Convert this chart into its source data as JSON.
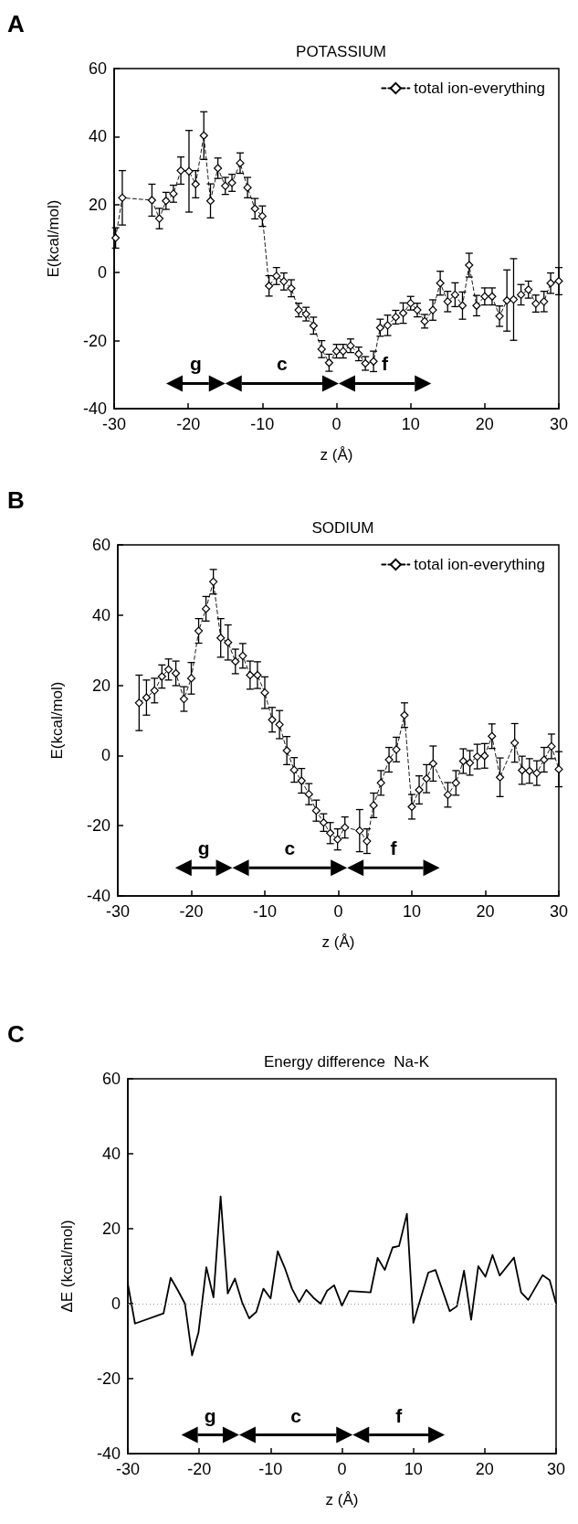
{
  "chart_data": [
    {
      "type": "line",
      "title": "POTASSIUM",
      "xlabel": "z (Å)",
      "ylabel": "E(kcal/mol)",
      "xlim": [
        -30,
        30
      ],
      "xticks": [
        -30,
        -20,
        -10,
        0,
        10,
        20,
        30
      ],
      "ylim": [
        -40,
        60
      ],
      "yticks": [
        -40,
        -20,
        0,
        20,
        40,
        60
      ],
      "grid": false,
      "legend": "top right",
      "marker": "diamond",
      "line_style": "dashed",
      "x": [
        -29.8,
        -28.9,
        -24.9,
        -23.9,
        -23,
        -22,
        -21,
        -19.9,
        -19,
        -17.9,
        -17,
        -16,
        -15,
        -14.1,
        -13,
        -12,
        -11,
        -10,
        -9.1,
        -8.1,
        -7.1,
        -6.1,
        -5.1,
        -4.1,
        -3.1,
        -2,
        -1,
        0,
        0.9,
        1.9,
        3,
        3.9,
        5,
        5.9,
        6.9,
        8,
        9,
        10,
        10.9,
        11.9,
        13,
        14,
        15,
        16,
        17,
        17.9,
        18.9,
        20,
        21,
        22,
        23,
        23.9,
        24.9,
        25.9,
        26.9,
        28,
        28.9,
        30
      ],
      "series": [
        {
          "name": "total ion-everything",
          "color": "#000000",
          "values": [
            10.2,
            22,
            21.3,
            15.9,
            21.1,
            23.2,
            30,
            29.8,
            26,
            40.3,
            21.1,
            30.7,
            25.5,
            26.4,
            32.2,
            25,
            18.8,
            16.6,
            -3.9,
            -1,
            -2.6,
            -4.6,
            -11,
            -12.2,
            -15.6,
            -22.5,
            -26.5,
            -23.1,
            -23.1,
            -21.5,
            -23.9,
            -26.7,
            -26.1,
            -16.2,
            -15.5,
            -13.1,
            -11.9,
            -9,
            -11,
            -14.3,
            -11,
            -3.1,
            -8.5,
            -6.5,
            -9.7,
            2.2,
            -9.7,
            -7,
            -7,
            -12.8,
            -8.2,
            -7.9,
            -6.5,
            -5,
            -9.1,
            -8.5,
            -3.1,
            -2.5
          ],
          "errors": [
            3,
            8,
            4.7,
            3,
            2.5,
            2.5,
            4,
            12,
            4,
            7,
            5,
            3,
            2.5,
            2.5,
            3,
            3,
            3,
            3,
            3,
            2.5,
            2.5,
            2.5,
            2,
            2,
            2.5,
            2.5,
            2.5,
            2,
            2,
            2,
            2,
            2,
            3,
            2.5,
            3,
            2,
            3,
            2,
            2,
            2,
            3,
            3.5,
            3,
            3.5,
            4,
            3.5,
            3,
            2.5,
            2.5,
            3,
            9,
            12,
            3,
            2.5,
            2.5,
            3,
            3,
            4
          ]
        }
      ],
      "annotations": [
        "A",
        "g",
        "c",
        "f"
      ]
    },
    {
      "type": "line",
      "title": "SODIUM",
      "xlabel": "z (Å)",
      "ylabel": "E(kcal/mol)",
      "xlim": [
        -30,
        30
      ],
      "xticks": [
        -30,
        -20,
        -10,
        0,
        10,
        20,
        30
      ],
      "ylim": [
        -40,
        60
      ],
      "yticks": [
        -40,
        -20,
        0,
        20,
        40,
        60
      ],
      "grid": false,
      "legend": "top right",
      "marker": "diamond",
      "line_style": "dashed",
      "x": [
        -27.1,
        -26.1,
        -25,
        -24,
        -23.1,
        -22.1,
        -21,
        -20,
        -19,
        -18,
        -17,
        -16,
        -15,
        -14,
        -13,
        -12,
        -11,
        -10,
        -9,
        -8,
        -7,
        -6,
        -5,
        -4,
        -3,
        -2,
        -1.1,
        -0.1,
        0.9,
        2.9,
        3.9,
        4.8,
        5.8,
        6.9,
        7.9,
        9,
        10,
        11,
        12,
        12.9,
        14.9,
        16,
        17,
        17.9,
        18.9,
        19.9,
        20.9,
        22,
        24,
        25,
        26,
        27,
        28,
        29,
        30
      ],
      "series": [
        {
          "name": "total ion-everything",
          "color": "#000000",
          "values": [
            15,
            16.5,
            18.5,
            22.5,
            24.5,
            23.4,
            16.1,
            22,
            35.5,
            41.8,
            49.5,
            33.5,
            32.2,
            26.8,
            28.4,
            22.9,
            22.9,
            17.9,
            10.2,
            8.8,
            1.4,
            -4.1,
            -7.2,
            -11,
            -15.7,
            -19.1,
            -22.1,
            -23.9,
            -20.5,
            -21.4,
            -24.4,
            -14.2,
            -7.8,
            -1.2,
            1.7,
            11.5,
            -14.6,
            -9.8,
            -6.6,
            -2.3,
            -11.2,
            -7.8,
            -1.6,
            -2.1,
            -0.3,
            -0.1,
            5.5,
            -6.2,
            3.6,
            -4.2,
            -4.4,
            -5,
            -1.2,
            2.6,
            -3.9
          ],
          "errors": [
            7.9,
            5,
            3.5,
            3.3,
            3,
            3.5,
            3.5,
            4.5,
            3.5,
            3.5,
            3.5,
            5.5,
            5,
            3.5,
            3.5,
            4,
            3.8,
            4.5,
            3.5,
            4,
            4,
            3.5,
            3.5,
            3,
            3,
            2.5,
            3,
            3,
            3,
            6,
            3.5,
            3.5,
            3.5,
            3.5,
            3.5,
            3.5,
            3.5,
            4,
            4,
            5,
            3.5,
            3.5,
            3.5,
            3.5,
            3.5,
            3.5,
            3.5,
            5.5,
            5.5,
            4,
            3.5,
            3.5,
            3.5,
            3.5,
            5
          ]
        }
      ],
      "annotations": [
        "B",
        "g",
        "c",
        "f"
      ]
    },
    {
      "type": "line",
      "title": "Energy difference  Na-K",
      "xlabel": "z (Å)",
      "ylabel": "ΔE (kcal/mol)",
      "xlim": [
        -30,
        30
      ],
      "xticks": [
        -30,
        -20,
        -10,
        0,
        10,
        20,
        30
      ],
      "ylim": [
        -40,
        60
      ],
      "yticks": [
        -40,
        -20,
        0,
        20,
        40,
        60
      ],
      "grid": false,
      "marker": "none",
      "line_style": "solid",
      "x": [
        -30,
        -29,
        -25,
        -24,
        -23,
        -22,
        -21,
        -20.1,
        -19,
        -18,
        -17,
        -16,
        -15,
        -14,
        -13,
        -12,
        -11,
        -10,
        -9,
        -8,
        -7,
        -6,
        -5,
        -4,
        -3,
        -2.1,
        -1.1,
        0,
        1,
        4,
        5,
        6,
        7.1,
        8,
        9.1,
        10,
        12.1,
        13.1,
        15.1,
        16.1,
        17.1,
        18.1,
        19.1,
        20.1,
        21.1,
        22.1,
        24.1,
        25.1,
        26.1,
        28.1,
        29.1,
        30
      ],
      "series": [
        {
          "color": "#000000",
          "values": [
            5.3,
            -5.3,
            -2.6,
            6.9,
            3.6,
            0,
            -13.8,
            -7.7,
            9.7,
            1.7,
            28.6,
            2.7,
            6.7,
            0.4,
            -3.9,
            -2.2,
            4,
            1.4,
            14,
            9.5,
            4,
            0.4,
            3.7,
            1.6,
            0,
            3.4,
            4.9,
            -0.5,
            3.4,
            3,
            12.2,
            9,
            15,
            15.4,
            24,
            -5.1,
            8.3,
            9,
            -2,
            -0.7,
            8.8,
            -4.3,
            10,
            7.2,
            13,
            7.5,
            12.3,
            3,
            1,
            7.6,
            6.3,
            0
          ]
        }
      ],
      "ref_lines": [
        {
          "axis": "y",
          "value": 0,
          "color": "#999999",
          "line_style": "dotted"
        }
      ],
      "annotations": [
        "C",
        "g",
        "c",
        "f"
      ]
    }
  ]
}
